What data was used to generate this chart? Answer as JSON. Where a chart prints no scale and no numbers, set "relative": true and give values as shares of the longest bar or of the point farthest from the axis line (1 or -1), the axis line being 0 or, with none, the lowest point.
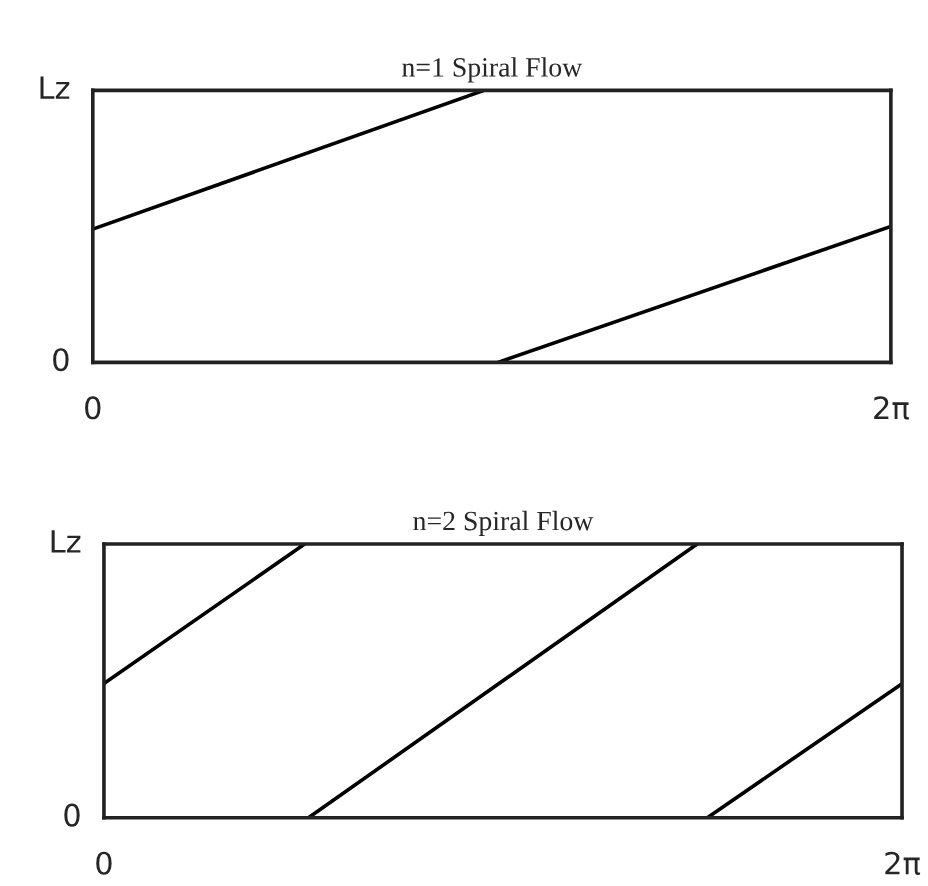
{
  "chart_data": [
    {
      "type": "line",
      "title": "n=1 Spiral Flow",
      "relative": true,
      "xlim": [
        0,
        6.283
      ],
      "xticks": [
        0,
        {
          "value": 6.283,
          "label": "2π"
        }
      ],
      "annotations": [
        "0",
        "Lz"
      ],
      "legend": false,
      "marker": "none",
      "line_style": "solid",
      "series": [
        {
          "color": "#000000",
          "x": [
            0,
            3.08
          ],
          "values": [
            0.49,
            1
          ]
        },
        {
          "color": "#000000",
          "x": [
            3.19,
            6.283
          ],
          "values": [
            0,
            0.5
          ]
        }
      ]
    },
    {
      "type": "line",
      "title": "n=2 Spiral Flow",
      "relative": true,
      "xlim": [
        0,
        6.283
      ],
      "xticks": [
        0,
        {
          "value": 6.283,
          "label": "2π"
        }
      ],
      "annotations": [
        "0",
        "Lz"
      ],
      "legend": false,
      "marker": "none",
      "line_style": "solid",
      "series": [
        {
          "color": "#000000",
          "x": [
            0,
            1.58
          ],
          "values": [
            0.49,
            1
          ]
        },
        {
          "color": "#000000",
          "x": [
            1.61,
            4.67
          ],
          "values": [
            0,
            1
          ]
        },
        {
          "color": "#000000",
          "x": [
            4.75,
            6.283
          ],
          "values": [
            0,
            0.49
          ]
        }
      ]
    }
  ]
}
